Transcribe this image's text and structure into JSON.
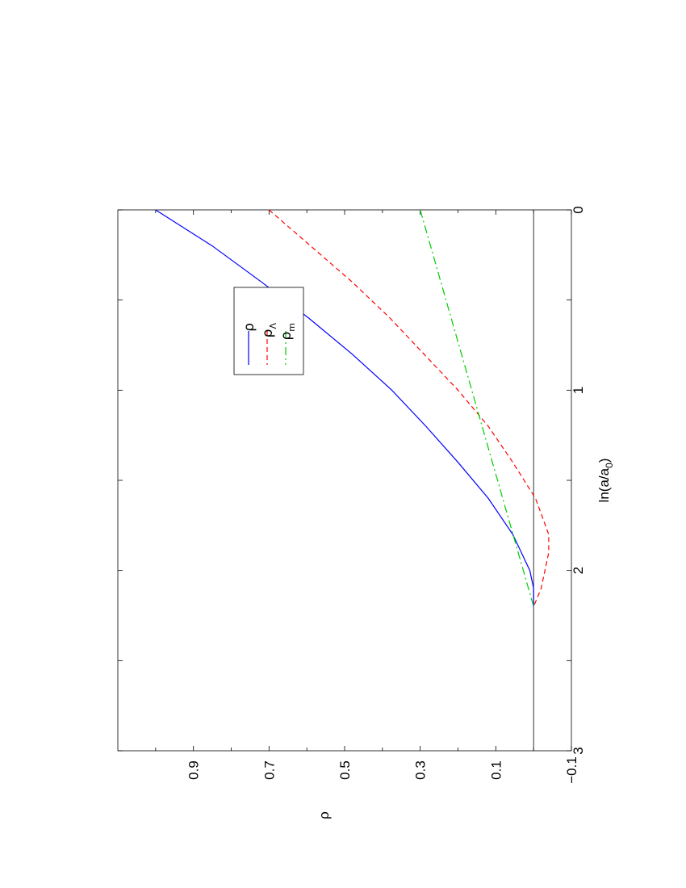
{
  "chart_data": {
    "type": "line",
    "orientation": "rotated-90-clockwise",
    "xlabel": "ln(a/a",
    "xlabel_sub": "0",
    "xlabel_close": ")",
    "ylabel": "ρ",
    "xlim": [
      0,
      3
    ],
    "ylim": [
      -0.1,
      1.1
    ],
    "x_ticks": [
      0,
      0.5,
      1,
      1.5,
      2,
      2.5,
      3
    ],
    "x_tick_labels": [
      "0",
      "",
      "1",
      "",
      "2",
      "",
      "3"
    ],
    "y_ticks": [
      -0.1,
      0.1,
      0.3,
      0.5,
      0.7,
      0.9
    ],
    "y_tick_labels": [
      "−0.1",
      "0.1",
      "0.3",
      "0.5",
      "0.7",
      "0.9"
    ],
    "y_minor_ticks": [
      0,
      0.2,
      0.4,
      0.6,
      0.8,
      1.0
    ],
    "grid": false,
    "zero_line": true,
    "legend_position": "top-right",
    "series": [
      {
        "name": "ρ",
        "sub": "",
        "color": "#0000ff",
        "dash": "solid",
        "x": [
          0,
          0.2,
          0.4,
          0.6,
          0.8,
          1.0,
          1.2,
          1.4,
          1.6,
          1.8,
          2.0,
          2.1,
          2.2
        ],
        "y": [
          1.0,
          0.85,
          0.72,
          0.595,
          0.48,
          0.375,
          0.285,
          0.2,
          0.12,
          0.055,
          0.01,
          0.0,
          0.0
        ]
      },
      {
        "name": "ρ",
        "sub": "Λ",
        "color": "#ff0000",
        "dash": "dashed",
        "x": [
          0,
          0.2,
          0.4,
          0.6,
          0.8,
          1.0,
          1.2,
          1.4,
          1.6,
          1.8,
          1.9,
          2.0,
          2.1,
          2.2
        ],
        "y": [
          0.7,
          0.59,
          0.48,
          0.38,
          0.29,
          0.2,
          0.12,
          0.055,
          -0.005,
          -0.04,
          -0.04,
          -0.03,
          -0.02,
          0.0
        ]
      },
      {
        "name": "ρ",
        "sub": "m",
        "color": "#00cc00",
        "dash": "dashdot",
        "x": [
          0,
          2.2
        ],
        "y": [
          0.3,
          0.0
        ]
      }
    ]
  }
}
